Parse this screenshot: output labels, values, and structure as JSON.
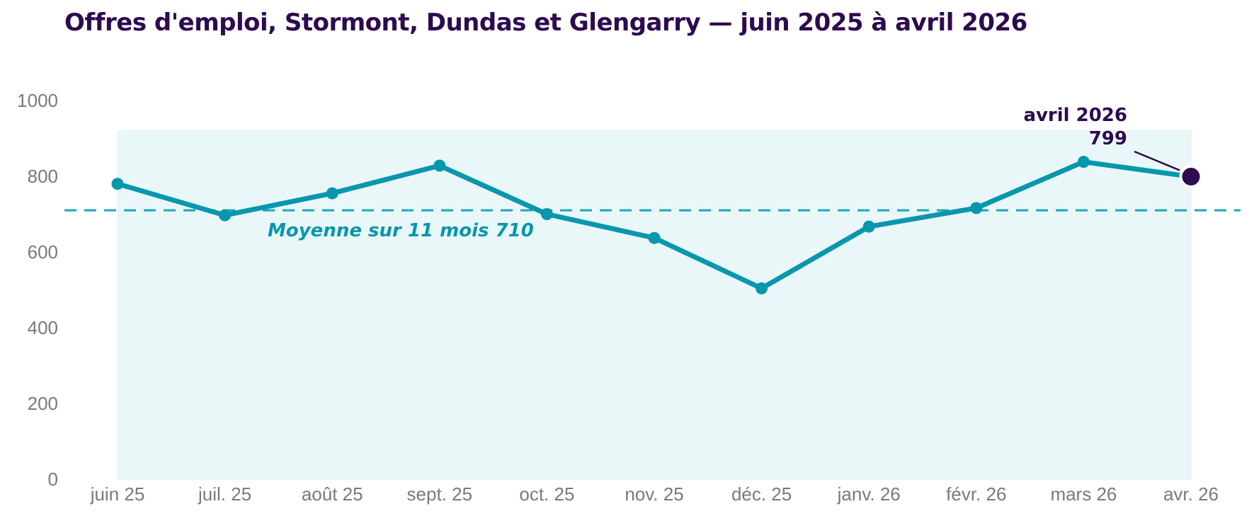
{
  "chart_data": {
    "type": "line",
    "title": "Offres d'emploi, Stormont, Dundas et Glengarry — juin 2025 à avril 2026",
    "xlabel": "",
    "ylabel": "",
    "ylim": [
      0,
      1000
    ],
    "y_ticks": [
      "0",
      "200",
      "400",
      "600",
      "800",
      "1000"
    ],
    "categories": [
      "juin 25",
      "juil. 25",
      "août 25",
      "sept. 25",
      "oct. 25",
      "nov. 25",
      "déc. 25",
      "janv. 26",
      "févr. 26",
      "mars 26",
      "avr. 26"
    ],
    "series": [
      {
        "values": [
          780,
          697,
          755,
          828,
          700,
          637,
          504,
          667,
          716,
          838,
          799
        ]
      }
    ],
    "average": {
      "value": 710,
      "label": "Moyenne sur 11 mois  710"
    },
    "callout": {
      "index": 10,
      "label": "avril 2026",
      "value_label": "799"
    },
    "grid": false,
    "legend": "none",
    "colors": {
      "line": "#0897ad",
      "average": "#1aa8bd",
      "band": "#eaf7f8",
      "highlight": "#2e0a4f",
      "title": "#2e0a4f",
      "ticks": "#7a7a7a"
    }
  }
}
